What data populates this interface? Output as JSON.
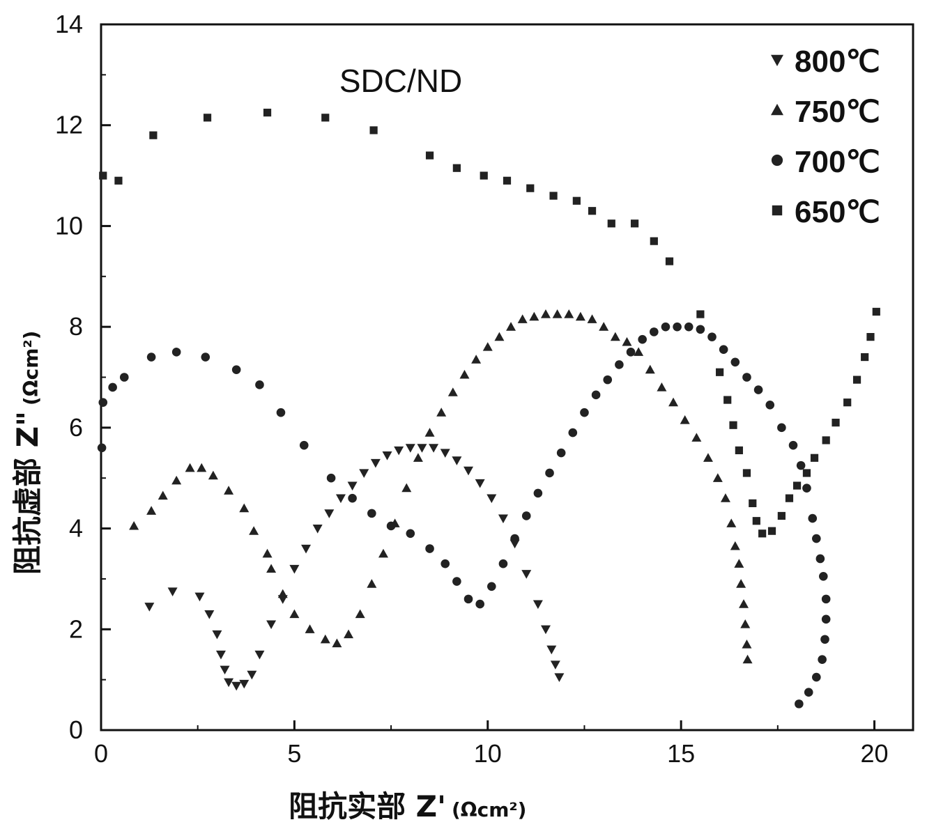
{
  "chart_data": {
    "type": "scatter",
    "annotation": "SDC/ND",
    "xlabel": {
      "main": "阻抗实部 Z'",
      "unit": "(Ωcm²)"
    },
    "ylabel": {
      "main": "阻抗虚部 Z\"",
      "unit": "(Ωcm²)"
    },
    "xlim": [
      0,
      21
    ],
    "ylim": [
      0,
      14
    ],
    "x_ticks": [
      0,
      5,
      10,
      15,
      20
    ],
    "y_ticks": [
      0,
      2,
      4,
      6,
      8,
      10,
      12,
      14
    ],
    "grid": false,
    "legend_position": "top-right",
    "series": [
      {
        "name": "800℃",
        "marker": "triangle-down",
        "points": [
          [
            1.25,
            2.45
          ],
          [
            1.85,
            2.75
          ],
          [
            2.55,
            2.65
          ],
          [
            2.8,
            2.3
          ],
          [
            3.0,
            1.9
          ],
          [
            3.1,
            1.5
          ],
          [
            3.2,
            1.2
          ],
          [
            3.3,
            0.95
          ],
          [
            3.5,
            0.88
          ],
          [
            3.7,
            0.92
          ],
          [
            3.9,
            1.1
          ],
          [
            4.1,
            1.5
          ],
          [
            4.4,
            2.1
          ],
          [
            4.7,
            2.6
          ],
          [
            5.0,
            3.2
          ],
          [
            5.3,
            3.6
          ],
          [
            5.6,
            4.0
          ],
          [
            5.9,
            4.3
          ],
          [
            6.2,
            4.6
          ],
          [
            6.5,
            4.85
          ],
          [
            6.8,
            5.1
          ],
          [
            7.1,
            5.3
          ],
          [
            7.4,
            5.45
          ],
          [
            7.7,
            5.55
          ],
          [
            8.0,
            5.6
          ],
          [
            8.3,
            5.6
          ],
          [
            8.6,
            5.6
          ],
          [
            8.9,
            5.5
          ],
          [
            9.2,
            5.35
          ],
          [
            9.5,
            5.15
          ],
          [
            9.8,
            4.9
          ],
          [
            10.1,
            4.6
          ],
          [
            10.4,
            4.2
          ],
          [
            10.7,
            3.7
          ],
          [
            11.0,
            3.1
          ],
          [
            11.3,
            2.5
          ],
          [
            11.5,
            2.0
          ],
          [
            11.65,
            1.6
          ],
          [
            11.75,
            1.3
          ],
          [
            11.85,
            1.05
          ]
        ]
      },
      {
        "name": "750℃",
        "marker": "triangle-up",
        "points": [
          [
            0.85,
            4.05
          ],
          [
            1.3,
            4.35
          ],
          [
            1.6,
            4.65
          ],
          [
            1.95,
            4.95
          ],
          [
            2.3,
            5.2
          ],
          [
            2.6,
            5.2
          ],
          [
            2.9,
            5.05
          ],
          [
            3.3,
            4.75
          ],
          [
            3.7,
            4.4
          ],
          [
            3.95,
            3.95
          ],
          [
            4.3,
            3.5
          ],
          [
            4.4,
            3.2
          ],
          [
            4.7,
            2.7
          ],
          [
            5.0,
            2.3
          ],
          [
            5.4,
            2.0
          ],
          [
            5.8,
            1.8
          ],
          [
            6.1,
            1.72
          ],
          [
            6.4,
            1.9
          ],
          [
            6.7,
            2.3
          ],
          [
            7.0,
            2.9
          ],
          [
            7.3,
            3.5
          ],
          [
            7.6,
            4.1
          ],
          [
            7.9,
            4.8
          ],
          [
            8.2,
            5.4
          ],
          [
            8.5,
            5.9
          ],
          [
            8.8,
            6.3
          ],
          [
            9.1,
            6.7
          ],
          [
            9.4,
            7.05
          ],
          [
            9.7,
            7.35
          ],
          [
            10.0,
            7.6
          ],
          [
            10.3,
            7.8
          ],
          [
            10.6,
            8.0
          ],
          [
            10.9,
            8.15
          ],
          [
            11.2,
            8.2
          ],
          [
            11.5,
            8.25
          ],
          [
            11.8,
            8.25
          ],
          [
            12.1,
            8.25
          ],
          [
            12.4,
            8.2
          ],
          [
            12.7,
            8.15
          ],
          [
            13.0,
            8.0
          ],
          [
            13.3,
            7.8
          ],
          [
            13.6,
            7.7
          ],
          [
            13.9,
            7.5
          ],
          [
            14.2,
            7.15
          ],
          [
            14.5,
            6.8
          ],
          [
            14.8,
            6.5
          ],
          [
            15.1,
            6.15
          ],
          [
            15.4,
            5.8
          ],
          [
            15.7,
            5.4
          ],
          [
            15.95,
            5.0
          ],
          [
            16.15,
            4.6
          ],
          [
            16.3,
            4.1
          ],
          [
            16.4,
            3.65
          ],
          [
            16.5,
            3.3
          ],
          [
            16.55,
            2.9
          ],
          [
            16.62,
            2.5
          ],
          [
            16.66,
            2.1
          ],
          [
            16.7,
            1.7
          ],
          [
            16.72,
            1.4
          ]
        ]
      },
      {
        "name": "700℃",
        "marker": "circle",
        "points": [
          [
            0.02,
            5.6
          ],
          [
            0.05,
            6.5
          ],
          [
            0.3,
            6.8
          ],
          [
            0.6,
            7.0
          ],
          [
            1.3,
            7.4
          ],
          [
            1.95,
            7.5
          ],
          [
            2.7,
            7.4
          ],
          [
            3.5,
            7.15
          ],
          [
            4.1,
            6.85
          ],
          [
            4.65,
            6.3
          ],
          [
            5.25,
            5.65
          ],
          [
            5.95,
            5.0
          ],
          [
            6.5,
            4.6
          ],
          [
            7.0,
            4.3
          ],
          [
            7.5,
            4.05
          ],
          [
            8.0,
            3.9
          ],
          [
            8.5,
            3.6
          ],
          [
            8.9,
            3.3
          ],
          [
            9.2,
            2.95
          ],
          [
            9.5,
            2.6
          ],
          [
            9.8,
            2.5
          ],
          [
            10.1,
            2.85
          ],
          [
            10.4,
            3.3
          ],
          [
            10.7,
            3.8
          ],
          [
            11.0,
            4.25
          ],
          [
            11.3,
            4.7
          ],
          [
            11.6,
            5.1
          ],
          [
            11.9,
            5.5
          ],
          [
            12.2,
            5.9
          ],
          [
            12.5,
            6.3
          ],
          [
            12.8,
            6.65
          ],
          [
            13.1,
            6.95
          ],
          [
            13.4,
            7.25
          ],
          [
            13.7,
            7.5
          ],
          [
            14.0,
            7.75
          ],
          [
            14.3,
            7.9
          ],
          [
            14.6,
            8.0
          ],
          [
            14.9,
            8.0
          ],
          [
            15.2,
            8.0
          ],
          [
            15.5,
            7.95
          ],
          [
            15.8,
            7.8
          ],
          [
            16.1,
            7.55
          ],
          [
            16.4,
            7.3
          ],
          [
            16.7,
            7.0
          ],
          [
            17.0,
            6.75
          ],
          [
            17.3,
            6.45
          ],
          [
            17.6,
            6.0
          ],
          [
            17.9,
            5.65
          ],
          [
            18.1,
            5.25
          ],
          [
            18.25,
            4.8
          ],
          [
            18.4,
            4.2
          ],
          [
            18.5,
            3.8
          ],
          [
            18.6,
            3.4
          ],
          [
            18.68,
            3.05
          ],
          [
            18.75,
            2.6
          ],
          [
            18.75,
            2.2
          ],
          [
            18.72,
            1.8
          ],
          [
            18.65,
            1.4
          ],
          [
            18.5,
            1.05
          ],
          [
            18.3,
            0.75
          ],
          [
            18.05,
            0.52
          ]
        ]
      },
      {
        "name": "650℃",
        "marker": "square",
        "points": [
          [
            0.05,
            11.0
          ],
          [
            0.45,
            10.9
          ],
          [
            1.35,
            11.8
          ],
          [
            2.75,
            12.15
          ],
          [
            4.3,
            12.25
          ],
          [
            5.8,
            12.15
          ],
          [
            7.05,
            11.9
          ],
          [
            8.5,
            11.4
          ],
          [
            9.2,
            11.15
          ],
          [
            9.9,
            11.0
          ],
          [
            10.5,
            10.9
          ],
          [
            11.1,
            10.75
          ],
          [
            11.7,
            10.6
          ],
          [
            12.3,
            10.5
          ],
          [
            12.7,
            10.3
          ],
          [
            13.2,
            10.05
          ],
          [
            13.8,
            10.05
          ],
          [
            14.3,
            9.7
          ],
          [
            14.7,
            9.3
          ],
          [
            15.5,
            8.25
          ],
          [
            16.0,
            7.1
          ],
          [
            16.2,
            6.55
          ],
          [
            16.35,
            6.05
          ],
          [
            16.5,
            5.55
          ],
          [
            16.7,
            5.1
          ],
          [
            16.85,
            4.5
          ],
          [
            16.95,
            4.15
          ],
          [
            17.1,
            3.9
          ],
          [
            17.35,
            3.95
          ],
          [
            17.6,
            4.25
          ],
          [
            17.8,
            4.6
          ],
          [
            18.0,
            4.85
          ],
          [
            18.25,
            5.1
          ],
          [
            18.45,
            5.4
          ],
          [
            18.75,
            5.75
          ],
          [
            19.0,
            6.1
          ],
          [
            19.3,
            6.5
          ],
          [
            19.55,
            6.95
          ],
          [
            19.75,
            7.4
          ],
          [
            19.9,
            7.8
          ],
          [
            20.05,
            8.3
          ]
        ]
      }
    ]
  }
}
